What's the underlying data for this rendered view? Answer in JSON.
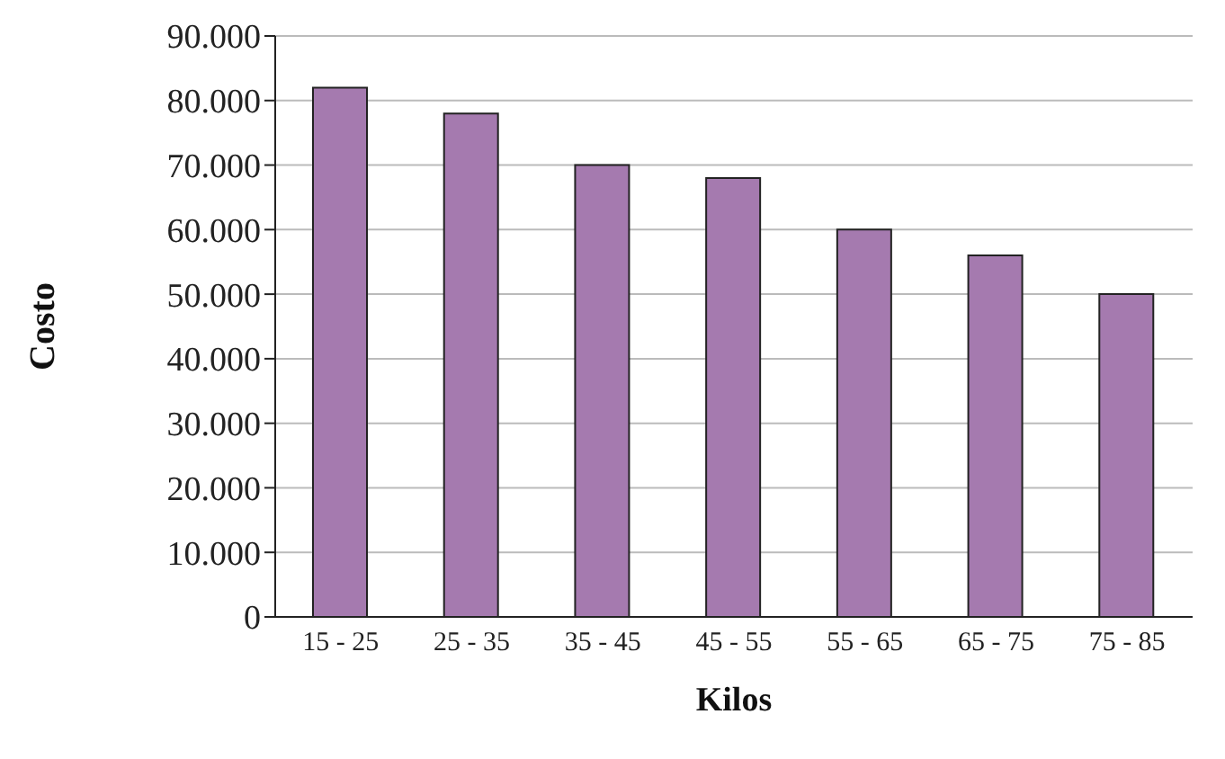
{
  "chart_data": {
    "type": "bar",
    "xlabel": "Kilos",
    "ylabel": "Costo",
    "categories": [
      "15 - 25",
      "25 - 35",
      "35 - 45",
      "45 - 55",
      "55 - 65",
      "65 - 75",
      "75 - 85"
    ],
    "values": [
      82000,
      78000,
      70000,
      68000,
      60000,
      56000,
      50000
    ],
    "color": "#a57aaf",
    "ylim": [
      0,
      90000
    ],
    "yticks": [
      0,
      {
        "value": 10000,
        "label": "10.000"
      },
      {
        "value": 20000,
        "label": "20.000"
      },
      {
        "value": 30000,
        "label": "30.000"
      },
      {
        "value": 40000,
        "label": "40.000"
      },
      {
        "value": 50000,
        "label": "50.000"
      },
      {
        "value": 60000,
        "label": "60.000"
      },
      {
        "value": 70000,
        "label": "70.000"
      },
      {
        "value": 80000,
        "label": "80.000"
      },
      {
        "value": 90000,
        "label": "90.000"
      }
    ],
    "grid": "y"
  }
}
